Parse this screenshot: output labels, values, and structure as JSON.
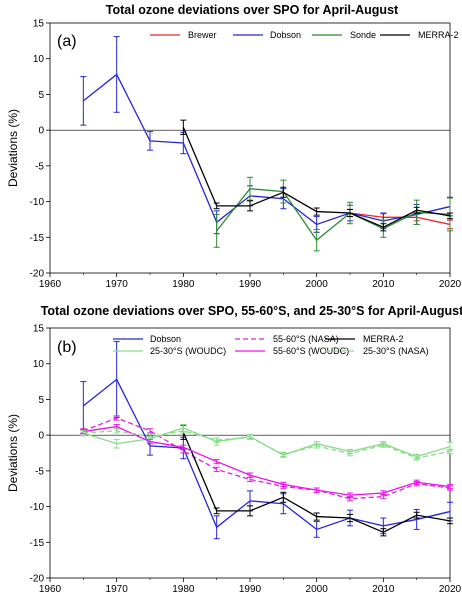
{
  "chart_data": [
    {
      "type": "line",
      "title": "Total ozone deviations over SPO for April-August",
      "panel_label": "(a)",
      "ylabel": "Deviations (%)",
      "xlim": [
        1960,
        2020
      ],
      "ylim": [
        -20,
        15
      ],
      "xticks": [
        1960,
        1970,
        1980,
        1990,
        2000,
        2010,
        2020
      ],
      "yticks": [
        15,
        10,
        5,
        0,
        -5,
        -10,
        -15,
        -20
      ],
      "legend_position": "top",
      "series": [
        {
          "name": "Brewer",
          "color": "#e8262b",
          "dash": "solid",
          "x": [
            2005,
            2010,
            2015,
            2020
          ],
          "y": [
            -11.6,
            -12.2,
            -12.2,
            -13.2
          ],
          "err": [
            0.5,
            0.5,
            0.5,
            0.6
          ]
        },
        {
          "name": "Dobson",
          "color": "#2626d8",
          "dash": "solid",
          "x": [
            1965,
            1970,
            1975,
            1980,
            1985,
            1990,
            1995,
            2000,
            2005,
            2010,
            2015,
            2020
          ],
          "y": [
            4.1,
            7.8,
            -1.5,
            -1.8,
            -12.9,
            -9.2,
            -9.6,
            -13.2,
            -11.6,
            -12.7,
            -11.8,
            -10.7
          ],
          "err": [
            3.4,
            5.3,
            1.3,
            1.5,
            1.6,
            1.4,
            1.4,
            1.1,
            1.1,
            1.1,
            1.4,
            1.3
          ]
        },
        {
          "name": "Sonde",
          "color": "#2e8b2e",
          "dash": "solid",
          "x": [
            1985,
            1990,
            1995,
            2000,
            2005,
            2010,
            2015,
            2020
          ],
          "y": [
            -14.1,
            -8.2,
            -8.6,
            -15.4,
            -11.6,
            -13.8,
            -11.5,
            -11.8
          ],
          "err": [
            2.3,
            1.6,
            1.6,
            1.5,
            1.5,
            1.2,
            1.7,
            2.3
          ]
        },
        {
          "name": "MERRA-2",
          "color": "#000000",
          "dash": "solid",
          "x": [
            1980,
            1985,
            1990,
            1995,
            2000,
            2005,
            2010,
            2015,
            2020
          ],
          "y": [
            0.4,
            -10.6,
            -10.6,
            -8.7,
            -11.4,
            -11.6,
            -13.6,
            -11.2,
            -12.0
          ],
          "err": [
            1.0,
            0.4,
            0.7,
            0.7,
            0.5,
            0.5,
            0.5,
            0.4,
            0.4
          ]
        }
      ]
    },
    {
      "type": "line",
      "title": "Total ozone deviations over SPO, 55-60°S, and 25-30°S for April-August",
      "panel_label": "(b)",
      "ylabel": "Deviations (%)",
      "xlim": [
        1960,
        2020
      ],
      "ylim": [
        -20,
        15
      ],
      "xticks": [
        1960,
        1970,
        1980,
        1990,
        2000,
        2010,
        2020
      ],
      "yticks": [
        15,
        10,
        5,
        0,
        -5,
        -10,
        -15,
        -20
      ],
      "legend_position": "top",
      "series": [
        {
          "name": "Dobson",
          "color": "#2626d8",
          "dash": "solid",
          "x": [
            1965,
            1970,
            1975,
            1980,
            1985,
            1990,
            1995,
            2000,
            2005,
            2010,
            2015,
            2020
          ],
          "y": [
            4.1,
            7.8,
            -1.5,
            -1.8,
            -12.9,
            -9.2,
            -9.6,
            -13.2,
            -11.6,
            -12.7,
            -11.8,
            -10.7
          ],
          "err": [
            3.4,
            5.3,
            1.3,
            1.5,
            1.6,
            1.4,
            1.4,
            1.1,
            1.1,
            1.1,
            1.4,
            1.3
          ]
        },
        {
          "name": "55-60°S (NASA)",
          "color": "#dd22dd",
          "dash": "dashed",
          "x": [
            1965,
            1970,
            1975,
            1980,
            1985,
            1990,
            1995,
            2000,
            2005,
            2010,
            2015,
            2020
          ],
          "y": [
            0.6,
            2.4,
            0.6,
            -2.2,
            -4.8,
            -6.2,
            -7.2,
            -7.7,
            -8.9,
            -8.6,
            -6.8,
            -7.4
          ],
          "err": [
            0.3,
            0.3,
            0.3,
            0.3,
            0.3,
            0.3,
            0.3,
            0.3,
            0.3,
            0.3,
            0.3,
            0.3
          ]
        },
        {
          "name": "MERRA-2",
          "color": "#000000",
          "dash": "solid",
          "x": [
            1980,
            1985,
            1990,
            1995,
            2000,
            2005,
            2010,
            2015,
            2020
          ],
          "y": [
            0.4,
            -10.6,
            -10.6,
            -8.7,
            -11.4,
            -11.6,
            -13.6,
            -11.2,
            -12.0
          ],
          "err": [
            1.0,
            0.4,
            0.7,
            0.7,
            0.5,
            0.5,
            0.5,
            0.4,
            0.4
          ]
        },
        {
          "name": "25-30°S (WOUDC)",
          "color": "#88dd88",
          "dash": "solid",
          "x": [
            1965,
            1970,
            1975,
            1980,
            1985,
            1990,
            1995,
            2000,
            2005,
            2010,
            2015,
            2020
          ],
          "y": [
            0.3,
            -1.2,
            -0.5,
            1.0,
            -0.9,
            -0.2,
            -2.8,
            -1.2,
            -2.3,
            -1.2,
            -3.0,
            -1.6
          ],
          "err": [
            0.4,
            0.6,
            0.4,
            0.5,
            0.5,
            0.3,
            0.3,
            0.3,
            0.3,
            0.3,
            0.3,
            0.6
          ]
        },
        {
          "name": "55-60°S (WOUDC)",
          "color": "#ee11ee",
          "dash": "solid",
          "x": [
            1965,
            1970,
            1975,
            1980,
            1985,
            1990,
            1995,
            2000,
            2005,
            2010,
            2015,
            2020
          ],
          "y": [
            0.5,
            1.2,
            -0.9,
            -1.7,
            -3.7,
            -5.6,
            -6.9,
            -7.7,
            -8.4,
            -8.1,
            -6.6,
            -7.2
          ],
          "err": [
            0.3,
            0.3,
            0.3,
            0.3,
            0.3,
            0.3,
            0.3,
            0.3,
            0.3,
            0.3,
            0.3,
            0.3
          ]
        },
        {
          "name": "25-30°S (NASA)",
          "color": "#88dd88",
          "dash": "dashed",
          "x": [
            1965,
            1970,
            1975,
            1980,
            1985,
            1990,
            1995,
            2000,
            2005,
            2010,
            2015,
            2020
          ],
          "y": [
            0.3,
            0.6,
            -0.2,
            0.6,
            -0.7,
            -0.3,
            -2.7,
            -1.5,
            -2.6,
            -1.4,
            -3.2,
            -2.3
          ],
          "err": [
            0.3,
            0.3,
            0.3,
            0.3,
            0.3,
            0.3,
            0.3,
            0.3,
            0.3,
            0.3,
            0.3,
            0.3
          ]
        }
      ]
    }
  ]
}
